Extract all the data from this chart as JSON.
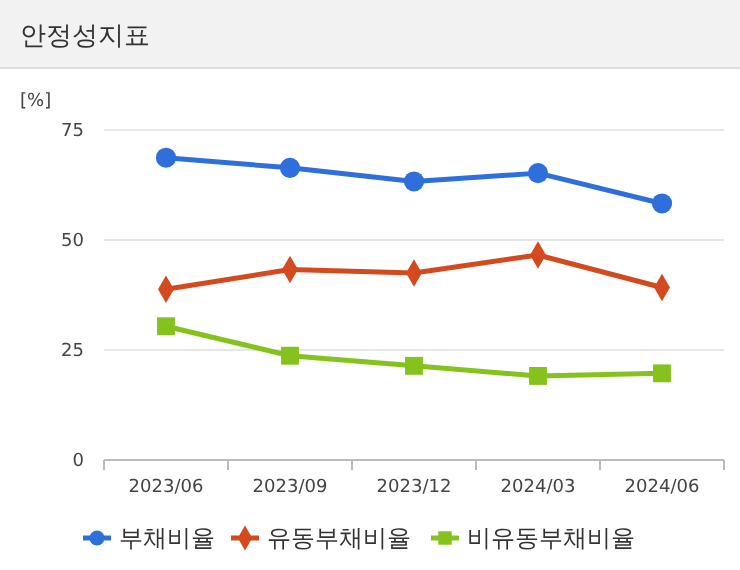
{
  "chart_data": {
    "type": "line",
    "title": "안정성지표",
    "ylabel": "[%]",
    "categories": [
      "2023/06",
      "2023/09",
      "2023/12",
      "2024/03",
      "2024/06"
    ],
    "series": [
      {
        "name": "부채비율",
        "color": "#2f6fdc",
        "marker": "circle",
        "values": [
          68.7,
          66.4,
          63.3,
          65.2,
          58.3
        ]
      },
      {
        "name": "유동부채비율",
        "color": "#d24a1e",
        "marker": "diamond",
        "values": [
          38.8,
          43.3,
          42.5,
          46.6,
          39.2
        ]
      },
      {
        "name": "비유동부채비율",
        "color": "#86c21d",
        "marker": "square",
        "values": [
          30.4,
          23.7,
          21.4,
          19.1,
          19.7
        ]
      }
    ],
    "ylim": [
      0,
      75
    ],
    "yticks": [
      0,
      25,
      50,
      75
    ],
    "grid": "y",
    "legend": "bottom"
  }
}
